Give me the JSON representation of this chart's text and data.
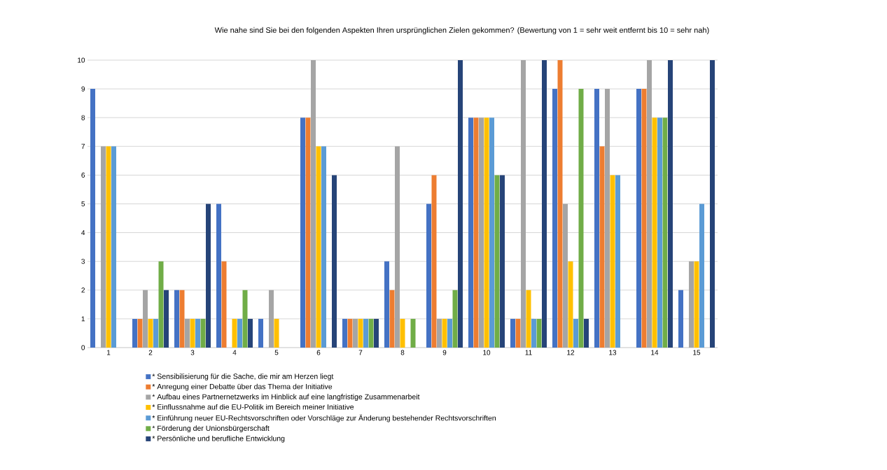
{
  "chart_data": {
    "type": "bar",
    "title": "Wie nahe sind Sie bei den folgenden Aspekten Ihren ursprünglichen Zielen gekommen? (Bewertung von 1 = sehr weit entfernt bis 10 = sehr nah)",
    "categories": [
      "1",
      "2",
      "3",
      "4",
      "5",
      "6",
      "7",
      "8",
      "9",
      "10",
      "11",
      "12",
      "13",
      "14",
      "15"
    ],
    "series": [
      {
        "name": "* Sensibilisierung für die Sache, die mir am Herzen liegt",
        "color": "#4472c4",
        "values": [
          9,
          1,
          2,
          5,
          1,
          8,
          1,
          3,
          5,
          8,
          1,
          9,
          9,
          9,
          2
        ]
      },
      {
        "name": "* Anregung einer Debatte über das Thema der Initiative",
        "color": "#ed7d31",
        "values": [
          null,
          1,
          2,
          3,
          null,
          8,
          1,
          2,
          6,
          8,
          1,
          10,
          7,
          9,
          null
        ]
      },
      {
        "name": "* Aufbau eines Partnernetzwerks im Hinblick auf eine langfristige Zusammenarbeit",
        "color": "#a5a5a5",
        "values": [
          7,
          2,
          1,
          null,
          2,
          10,
          1,
          7,
          1,
          8,
          10,
          5,
          9,
          10,
          3
        ]
      },
      {
        "name": "* Einflussnahme auf die EU-Politik im Bereich meiner Initiative",
        "color": "#ffc000",
        "values": [
          7,
          1,
          1,
          1,
          1,
          7,
          1,
          1,
          1,
          8,
          2,
          3,
          6,
          8,
          3
        ]
      },
      {
        "name": "* Einführung neuer EU-Rechtsvorschriften oder Vorschläge zur Änderung bestehender Rechtsvorschriften",
        "color": "#5b9bd5",
        "values": [
          7,
          1,
          1,
          1,
          null,
          7,
          1,
          null,
          1,
          8,
          1,
          1,
          6,
          8,
          5
        ]
      },
      {
        "name": "* Förderung der Unionsbürgerschaft",
        "color": "#70ad47",
        "values": [
          null,
          3,
          1,
          2,
          null,
          null,
          1,
          1,
          2,
          6,
          1,
          9,
          null,
          8,
          null
        ]
      },
      {
        "name": "* Persönliche und berufliche Entwicklung",
        "color": "#264478",
        "values": [
          null,
          2,
          5,
          1,
          null,
          6,
          1,
          null,
          10,
          6,
          10,
          1,
          null,
          10,
          10
        ]
      }
    ],
    "ylim": [
      0,
      10
    ],
    "yticks": [
      0,
      1,
      2,
      3,
      4,
      5,
      6,
      7,
      8,
      9,
      10
    ],
    "grid": "y",
    "legend": "bottom"
  }
}
